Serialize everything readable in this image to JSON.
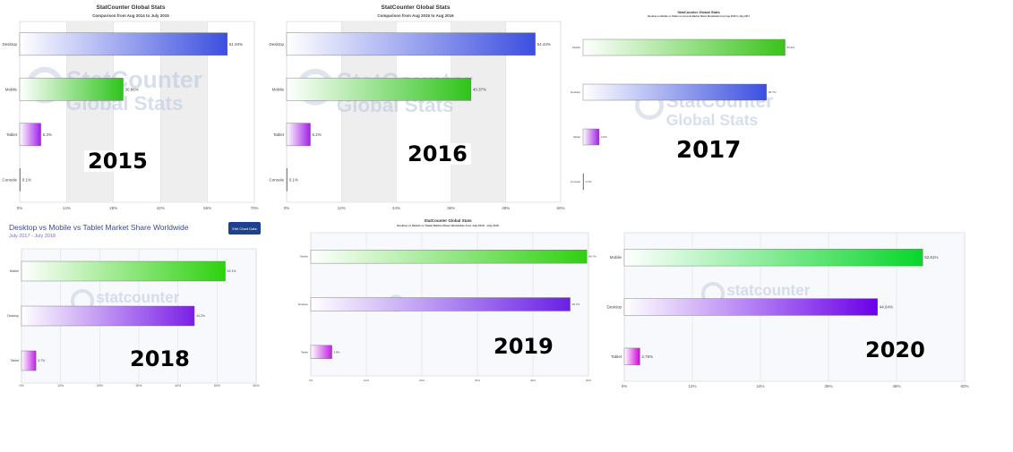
{
  "chart_data": [
    {
      "type": "bar",
      "year_label": "2015",
      "title": "StatCounter Global Stats",
      "subtitle": "Comparison from Aug 2014 to July 2015",
      "categories": [
        "Desktop",
        "Mobile",
        "Tablet",
        "Console"
      ],
      "values": [
        61.94,
        30.86,
        6.3,
        0.1
      ],
      "value_labels": [
        "61.94%",
        "30.86%",
        "6.3%",
        "0.1%"
      ],
      "xlim": [
        0,
        70
      ],
      "ticks": [
        "0%",
        "14%",
        "28%",
        "42%",
        "56%",
        "70%"
      ],
      "colors": [
        "#3b4fe0",
        "#2ec41a",
        "#a21fe6",
        "#333333"
      ],
      "watermark": [
        "StatCounter",
        "Global Stats"
      ],
      "grid": true
    },
    {
      "type": "bar",
      "year_label": "2016",
      "title": "StatCounter Global Stats",
      "subtitle": "Comparison from Aug 2015 to Aug 2016",
      "categories": [
        "Desktop",
        "Mobile",
        "Tablet",
        "Console"
      ],
      "values": [
        54.43,
        40.37,
        5.2,
        0.1
      ],
      "value_labels": [
        "54.43%",
        "40.37%",
        "5.2%",
        "0.1%"
      ],
      "xlim": [
        0,
        60
      ],
      "ticks": [
        "0%",
        "12%",
        "24%",
        "36%",
        "48%",
        "60%"
      ],
      "colors": [
        "#3b4fe0",
        "#2ec41a",
        "#a21fe6",
        "#333333"
      ],
      "watermark": [
        "StatCounter",
        "Global Stats"
      ],
      "grid": true
    },
    {
      "type": "bar",
      "year_label": "2017",
      "title": "StatCounter Global Stats",
      "subtitle": "Desktop vs Mobile vs Tablet vs Console Market Share Worldwide from Aug 2016 to July 2017",
      "categories": [
        "Mobile",
        "Desktop",
        "Tablet",
        "Console"
      ],
      "values": [
        50.3,
        45.7,
        4.0,
        0.1
      ],
      "value_labels": [
        "50.3%",
        "45.7%",
        "4.0%",
        "0.1%"
      ],
      "xlim": [
        0,
        60
      ],
      "ticks": [],
      "colors": [
        "#3ac41a",
        "#3b4fe0",
        "#a21fe6",
        "#333333"
      ],
      "watermark": [
        "StatCounter",
        "Global Stats"
      ],
      "grid": false
    },
    {
      "type": "bar",
      "year_label": "2018",
      "title": "Desktop vs Mobile vs Tablet Market Share Worldwide",
      "subtitle": "July 2017 - July 2018",
      "button": "Edit Chart Data",
      "categories": [
        "Mobile",
        "Desktop",
        "Tablet"
      ],
      "values": [
        52.1,
        44.2,
        3.7
      ],
      "value_labels": [
        "52.1%",
        "44.2%",
        "3.7%"
      ],
      "xlim": [
        0,
        60
      ],
      "ticks": [
        "0%",
        "10%",
        "20%",
        "30%",
        "40%",
        "50%",
        "60%"
      ],
      "colors": [
        "#2ed10f",
        "#7a1fe6",
        "#c21fe6"
      ],
      "watermark": [
        "statcounter"
      ],
      "grid": true
    },
    {
      "type": "bar",
      "year_label": "2019",
      "title": "StatCounter Global Stats",
      "subtitle": "Desktop vs Mobile vs Tablet Market Share Worldwide from July 2018 - July 2019",
      "categories": [
        "Mobile",
        "Desktop",
        "Tablet"
      ],
      "values": [
        49.7,
        46.7,
        3.8
      ],
      "value_labels": [
        "49.7%",
        "46.7%",
        "3.8%"
      ],
      "xlim": [
        0,
        50
      ],
      "ticks": [
        "0%",
        "10%",
        "20%",
        "30%",
        "40%",
        "50%"
      ],
      "colors": [
        "#2ed10f",
        "#6a1fe6",
        "#c21fe6"
      ],
      "watermark": [
        "statcounter"
      ],
      "grid": true
    },
    {
      "type": "bar",
      "year_label": "2020",
      "title": "",
      "subtitle": "",
      "categories": [
        "Mobile",
        "Desktop",
        "Tablet"
      ],
      "values": [
        52.61,
        44.64,
        2.75
      ],
      "value_labels": [
        "52.61%",
        "44.64%",
        "2.75%"
      ],
      "xlim": [
        0,
        60
      ],
      "ticks": [
        "0%",
        "12%",
        "24%",
        "36%",
        "48%",
        "60%"
      ],
      "colors": [
        "#08d62a",
        "#6a00e8",
        "#d400e0"
      ],
      "watermark": [
        "statcounter"
      ],
      "grid": true
    }
  ]
}
